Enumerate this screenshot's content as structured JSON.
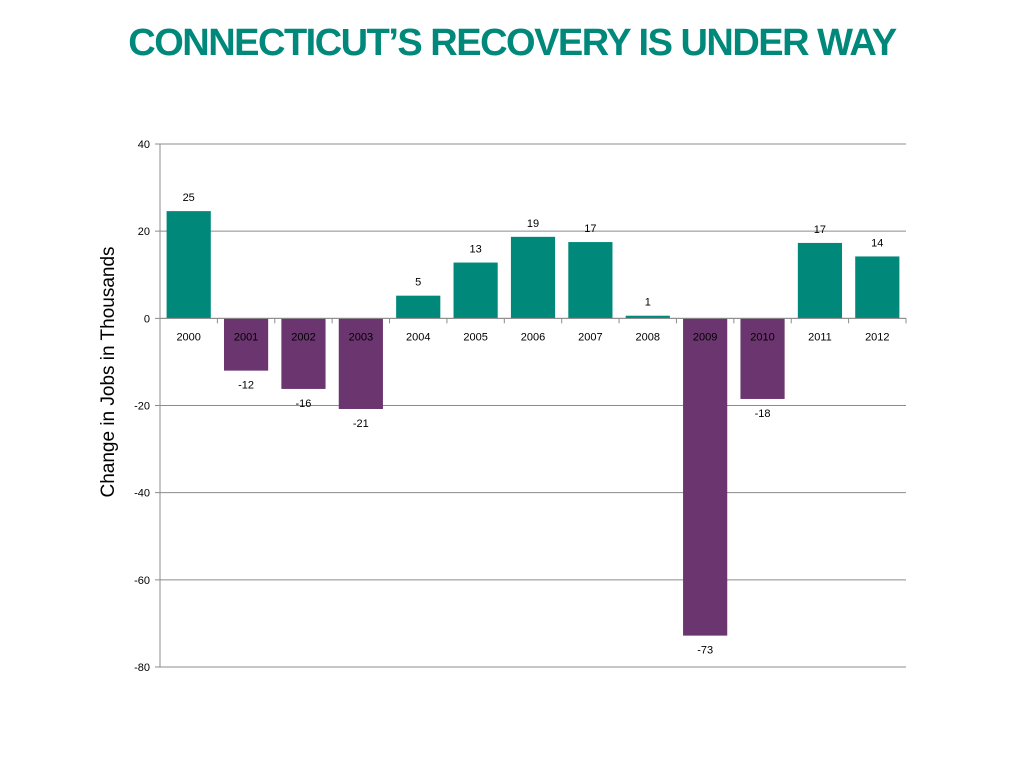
{
  "title": "CONNECTICUT’S RECOVERY IS UNDER WAY",
  "colors": {
    "title": "#00897b",
    "positive": "#00897b",
    "negative": "#6b356f",
    "grid": "#8c8c8c",
    "axis": "#8c8c8c"
  },
  "chart_data": {
    "type": "bar",
    "title": "",
    "xlabel": "",
    "ylabel": "Change in Jobs in Thousands",
    "categories": [
      "2000",
      "2001",
      "2002",
      "2003",
      "2004",
      "2005",
      "2006",
      "2007",
      "2008",
      "2009",
      "2010",
      "2011",
      "2012"
    ],
    "values": [
      24.6,
      -12,
      -16.2,
      -20.8,
      5.2,
      12.8,
      18.7,
      17.5,
      0.6,
      -72.8,
      -18.5,
      17.3,
      14.2
    ],
    "data_labels": [
      "25",
      "-12",
      "-16",
      "-21",
      "5",
      "13",
      "19",
      "17",
      "1",
      "-73",
      "-18",
      "17",
      "14"
    ],
    "ylim": [
      -80,
      40
    ],
    "yticks": [
      40,
      20,
      0,
      -20,
      -40,
      -60,
      -80
    ],
    "grid": true,
    "legend": "none"
  }
}
